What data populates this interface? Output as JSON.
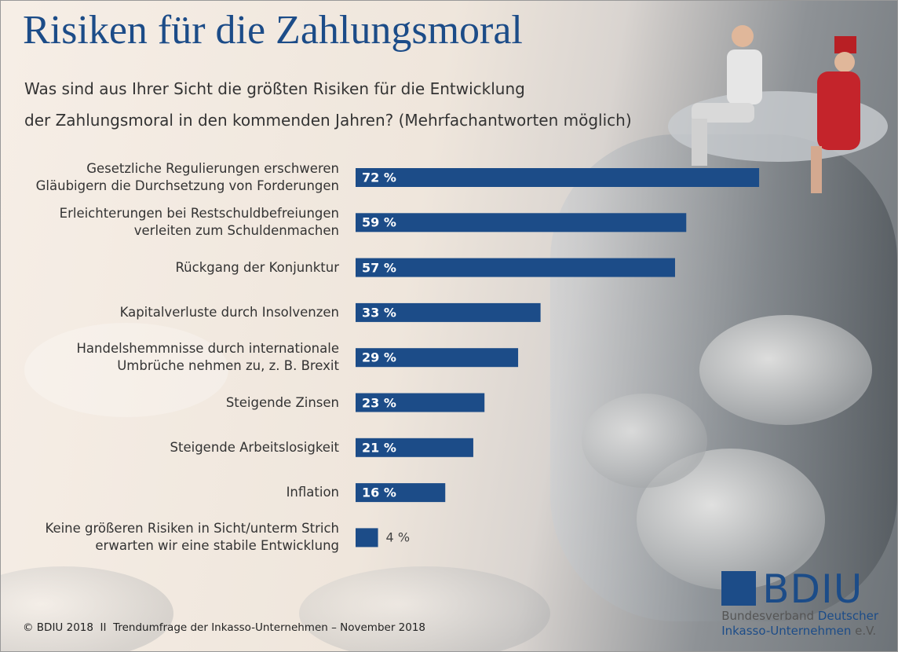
{
  "chart_data": {
    "type": "bar",
    "orientation": "horizontal",
    "title": "Risiken für die Zahlungsmoral",
    "subtitle": "Was sind aus Ihrer Sicht die größten Risiken für die Entwicklung\nder Zahlungsmoral in den kommenden Jahren? (Mehrfachantworten möglich)",
    "categories": [
      "Gesetzliche Regulierungen erschweren\nGläubigern die Durchsetzung von Forderungen",
      "Erleichterungen bei Restschuldbefreiungen\nverleiten zum Schuldenmachen",
      "Rückgang der Konjunktur",
      "Kapitalverluste durch Insolvenzen",
      "Handelshemmnisse durch internationale\nUmbrüche nehmen zu, z. B. Brexit",
      "Steigende Zinsen",
      "Steigende Arbeitslosigkeit",
      "Inflation",
      "Keine größeren Risiken in Sicht/unterm Strich\nerwarten wir eine stabile Entwicklung"
    ],
    "values": [
      72,
      59,
      57,
      33,
      29,
      23,
      21,
      16,
      4
    ],
    "value_labels": [
      "72 %",
      "59 %",
      "57 %",
      "33 %",
      "29 %",
      "23 %",
      "21 %",
      "16 %",
      "4 %"
    ],
    "color": "#1c4c88",
    "xlim": [
      0,
      100
    ]
  },
  "footer": {
    "source": "© BDIU 2018  II  Trendumfrage der Inkasso-Unternehmen – November 2018"
  },
  "logo": {
    "name": "BDIU",
    "line1a": "Bundesverband",
    "line1b": "Deutscher",
    "line2a": "Inkasso-Unternehmen",
    "line2b": "e.V."
  }
}
